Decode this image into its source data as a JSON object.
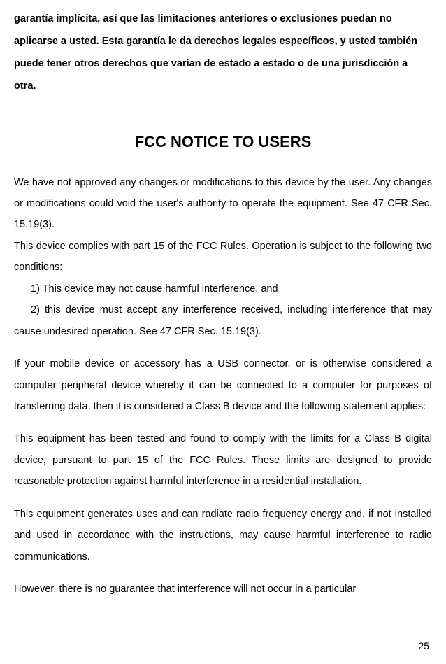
{
  "warranty_paragraph": "garantía implícita, así que las limitaciones anteriores o exclusiones puedan no aplicarse a usted. Esta garantía le da derechos legales específicos, y usted también puede tener otros derechos que varían de estado a estado o de una jurisdicción a otra.",
  "heading": "FCC NOTICE TO USERS",
  "para1": "We have not approved any changes or modifications to this device by the user. Any changes or modifications could void the user's authority to operate the equipment. See 47 CFR Sec. 15.19(3).",
  "para2": "This device complies with part 15 of the FCC Rules. Operation is subject to the following two conditions:",
  "list_item_1": "1)  This device may not cause harmful interference, and",
  "list_item_2": "2) this device must accept any interference received, including interference that may cause undesired operation. See 47 CFR Sec. 15.19(3).",
  "para3": "If your mobile device or accessory has a USB connector, or is otherwise considered a computer peripheral device whereby it can be connected to a computer for purposes of transferring data, then it is considered a Class B device and the following statement applies:",
  "para4": "This equipment has been tested and found to comply with the limits for a Class B digital device, pursuant to part 15 of the FCC Rules. These limits are designed to provide reasonable protection against harmful interference in a residential installation.",
  "para5": "This equipment generates uses and can radiate radio frequency energy and, if not installed and used in accordance with the instructions, may cause harmful interference to radio communications.",
  "para6": "However, there is no guarantee that interference will not occur in a particular",
  "page_number": "25",
  "colors": {
    "background": "#ffffff",
    "text": "#000000"
  },
  "typography": {
    "heading_fontsize": 22,
    "body_fontsize": 14.5,
    "pagenum_fontsize": 14,
    "line_height": 2.1,
    "font_family": "Arial"
  }
}
